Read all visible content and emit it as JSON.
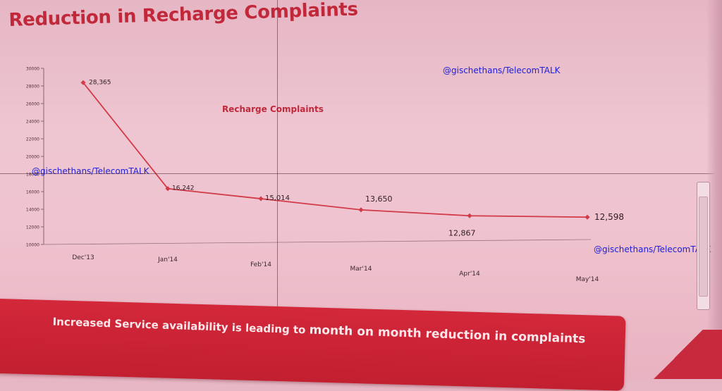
{
  "slide": {
    "title": "Reduction in Recharge Complaints",
    "watermark": "@gischethans/TelecomTALK",
    "banner_text_part1": "Increased Service availability is  leading to ",
    "banner_text_part2": "month on month reduction in complaints"
  },
  "colors": {
    "title": "#c1283a",
    "series_line": "#d23a48",
    "banner": "#c8283a",
    "watermark": "#2020d8"
  },
  "chart_data": {
    "type": "line",
    "title": "Recharge Complaints",
    "xlabel": "",
    "ylabel": "",
    "categories": [
      "Dec'13",
      "Jan'14",
      "Feb'14",
      "Mar'14",
      "Apr'14",
      "May'14"
    ],
    "series": [
      {
        "values": [
          28365,
          16242,
          15014,
          13650,
          12867,
          12598
        ]
      }
    ],
    "data_labels": [
      "28,365",
      "16,242",
      "15,014",
      "13,650",
      "12,867",
      "12,598"
    ],
    "ylim": [
      10000,
      30000
    ],
    "yticks": [
      10000,
      12000,
      14000,
      16000,
      18000,
      20000,
      22000,
      24000,
      26000,
      28000,
      30000
    ],
    "grid": false,
    "legend": "none"
  }
}
